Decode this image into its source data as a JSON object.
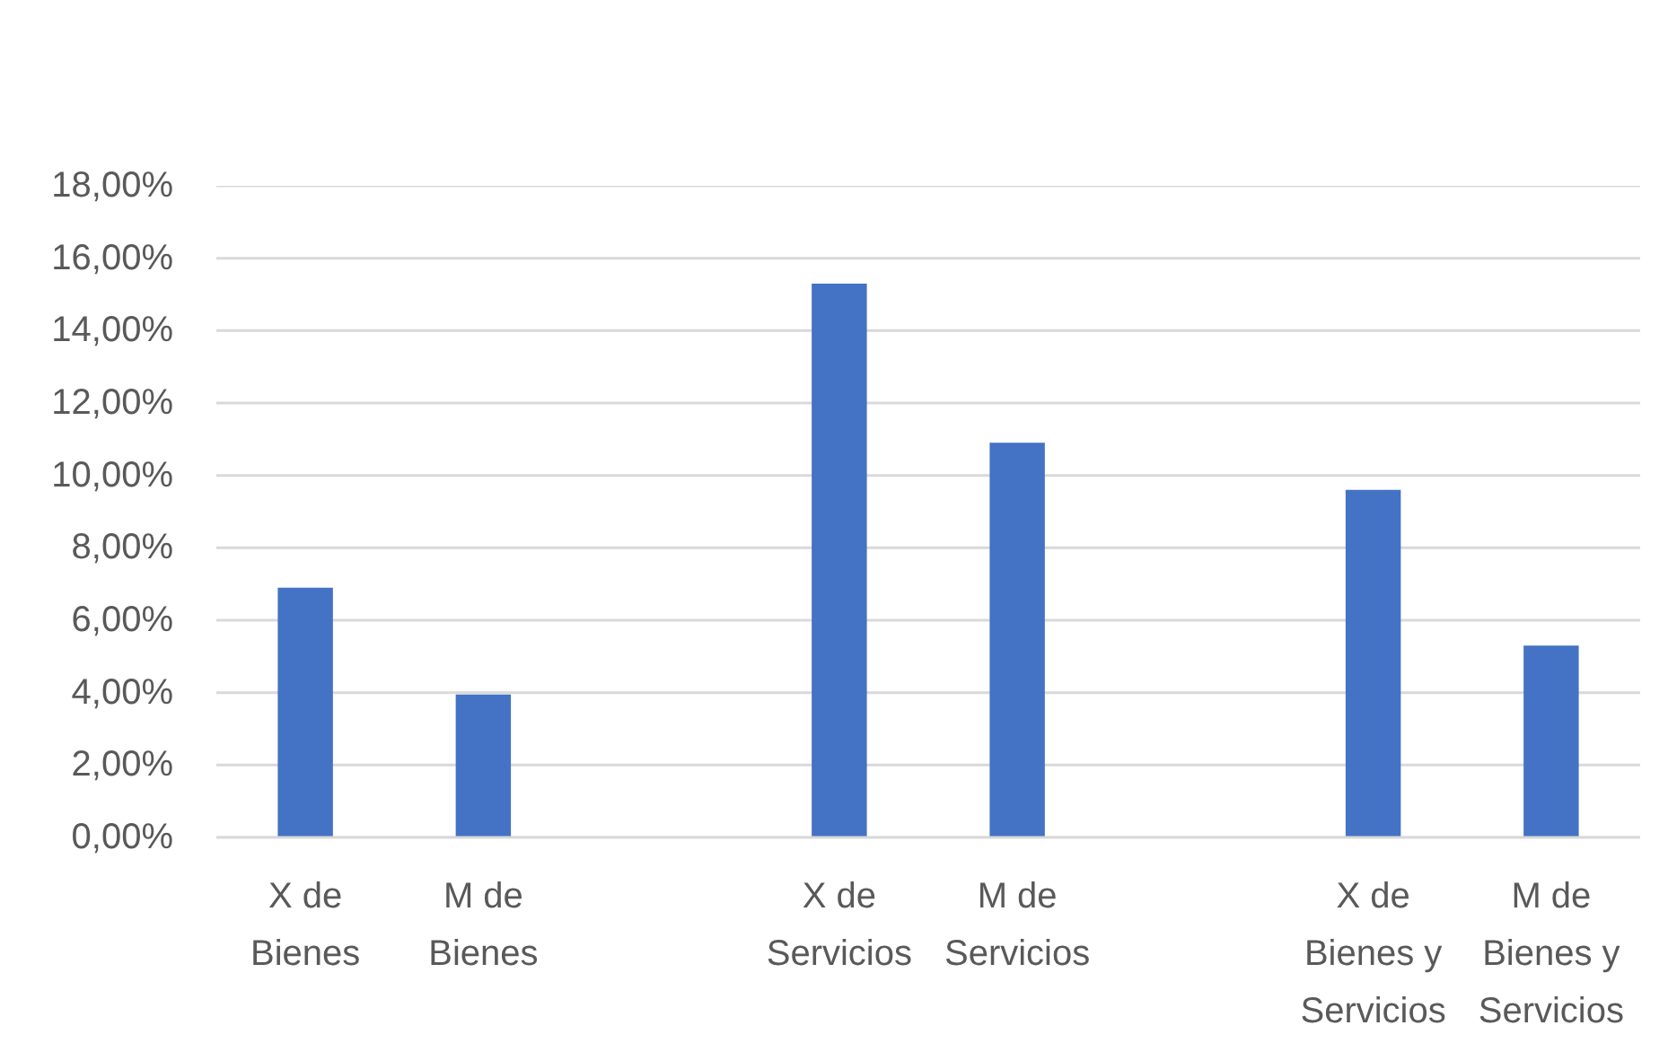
{
  "chart_data": {
    "type": "bar",
    "categories": [
      "X de Bienes",
      "M de Bienes",
      null,
      "X de Servicios",
      "M de Servicios",
      null,
      "X de Bienes y Servicios",
      "M de Bienes y Servicios"
    ],
    "values": [
      6.9,
      3.95,
      null,
      15.3,
      10.9,
      null,
      9.6,
      5.3
    ],
    "color": "#4472c4",
    "ylim": [
      0,
      18
    ],
    "yticks": [
      {
        "value": 0,
        "label": "0,00%"
      },
      {
        "value": 2,
        "label": "2,00%"
      },
      {
        "value": 4,
        "label": "4,00%"
      },
      {
        "value": 6,
        "label": "6,00%"
      },
      {
        "value": 8,
        "label": "8,00%"
      },
      {
        "value": 10,
        "label": "10,00%"
      },
      {
        "value": 12,
        "label": "12,00%"
      },
      {
        "value": 14,
        "label": "14,00%"
      },
      {
        "value": 16,
        "label": "16,00%"
      },
      {
        "value": 18,
        "label": "18,00%"
      }
    ],
    "grid": "y"
  }
}
